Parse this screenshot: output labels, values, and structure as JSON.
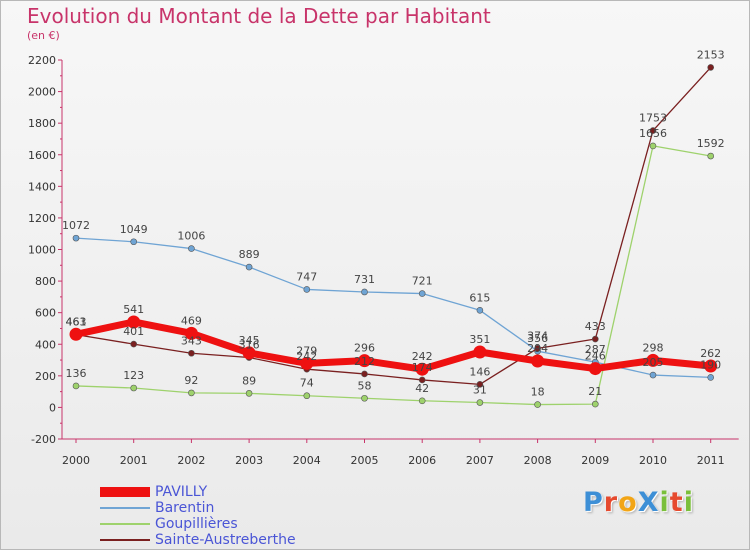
{
  "title": "Evolution du Montant de la Dette par Habitant",
  "unit": "(en €)",
  "logo": {
    "text": "ProXiti",
    "letters": [
      {
        "ch": "P",
        "color": "#3d8fd6"
      },
      {
        "ch": "r",
        "color": "#e64a2e"
      },
      {
        "ch": "o",
        "color": "#f2a516"
      },
      {
        "ch": "X",
        "color": "#3d8fd6"
      },
      {
        "ch": "i",
        "color": "#7abf3a"
      },
      {
        "ch": "t",
        "color": "#e64a2e"
      },
      {
        "ch": "i",
        "color": "#7abf3a"
      }
    ]
  },
  "chart_data": {
    "type": "line",
    "title": "Evolution du Montant de la Dette par Habitant",
    "subtitle": "(en €)",
    "categories": [
      "2000",
      "2001",
      "2002",
      "2003",
      "2004",
      "2005",
      "2006",
      "2007",
      "2008",
      "2009",
      "2010",
      "2011"
    ],
    "ylim": [
      -200,
      2200
    ],
    "yticks": [
      -200,
      0,
      200,
      400,
      600,
      800,
      1000,
      1200,
      1400,
      1600,
      1800,
      2000,
      2200
    ],
    "grid": false,
    "legend_position": "bottom-left",
    "series": [
      {
        "name": "PAVILLY",
        "color": "#ee1111",
        "highlight": true,
        "values": [
          463,
          541,
          469,
          345,
          279,
          296,
          242,
          351,
          294,
          246,
          298,
          262
        ]
      },
      {
        "name": "Barentin",
        "color": "#6fa4d4",
        "highlight": false,
        "values": [
          1072,
          1049,
          1006,
          889,
          747,
          731,
          721,
          615,
          356,
          287,
          205,
          190
        ]
      },
      {
        "name": "Goupillières",
        "color": "#9ed26c",
        "highlight": false,
        "values": [
          136,
          123,
          92,
          89,
          74,
          58,
          42,
          31,
          18,
          21,
          1656,
          1592
        ]
      },
      {
        "name": "Sainte-Austreberthe",
        "color": "#7a2020",
        "highlight": false,
        "values": [
          461,
          401,
          343,
          316,
          242,
          212,
          174,
          146,
          374,
          433,
          1753,
          2153
        ]
      }
    ]
  }
}
